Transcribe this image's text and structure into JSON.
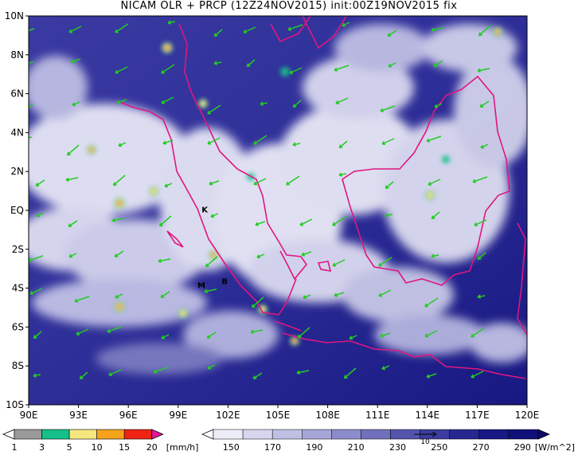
{
  "title": "NICAM OLR + PRCP (12Z24NOV2015) init:00Z19NOV2015 fix",
  "map": {
    "lon_range": [
      90,
      120
    ],
    "lat_range": [
      -10,
      10
    ],
    "x_ticks": [
      "90E",
      "93E",
      "96E",
      "99E",
      "102E",
      "105E",
      "108E",
      "111E",
      "114E",
      "117E",
      "120E"
    ],
    "y_ticks": [
      "10N",
      "8N",
      "6N",
      "4N",
      "2N",
      "EQ",
      "2S",
      "4S",
      "6S",
      "8S",
      "10S"
    ],
    "markers": [
      {
        "label": "K",
        "lon": 100.6,
        "lat": -0.1
      },
      {
        "label": "M",
        "lon": 100.4,
        "lat": -4.0
      },
      {
        "label": "B",
        "lon": 101.8,
        "lat": -3.8
      }
    ],
    "colors": {
      "coastline": "#e0167f",
      "wind_vectors": "#22cc22",
      "ocean": "#1a1a8c"
    }
  },
  "prcp_colorbar": {
    "labels": [
      "1",
      "3",
      "5",
      "10",
      "15",
      "20"
    ],
    "unit": "[mm/h]",
    "colors": [
      "#ffffff",
      "#9a9a9a",
      "#16c08a",
      "#f5e680",
      "#f5a21d",
      "#f02415",
      "#e8169a"
    ]
  },
  "olr_colorbar": {
    "labels": [
      "150",
      "170",
      "190",
      "210",
      "230",
      "250",
      "270",
      "290"
    ],
    "unit": "[W/m^2]",
    "colors": [
      "#ffffff",
      "#ededf8",
      "#d6d6ef",
      "#c0c0e5",
      "#a6a6d9",
      "#8c8ccb",
      "#7070bc",
      "#5454ad",
      "#3c3c9e",
      "#272790",
      "#181884",
      "#10107a",
      "#0a0a6e"
    ],
    "vector_ref": "10"
  }
}
